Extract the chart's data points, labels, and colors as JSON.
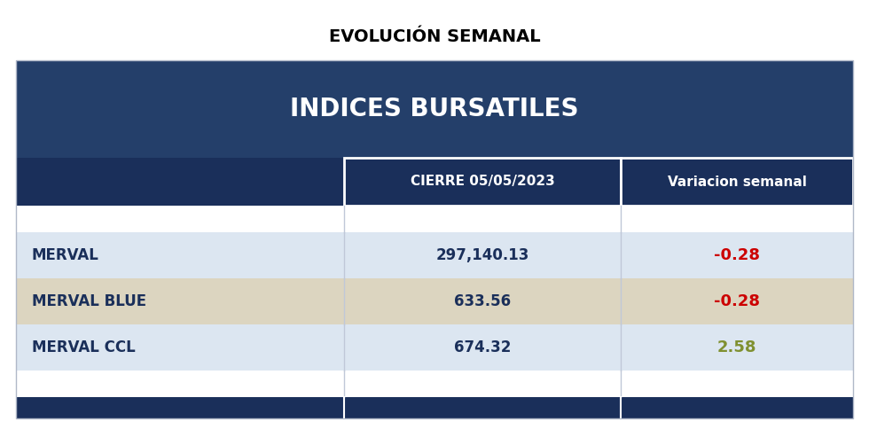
{
  "title": "EVOLUCIÓN SEMANAL",
  "table_header": "INDICES BURSATILES",
  "col1_header": "CIERRE 05/05/2023",
  "col2_header": "Variacion semanal",
  "rows": [
    {
      "name": "MERVAL",
      "value": "297,140.13",
      "change": "-0.28",
      "change_color": "#cc0000",
      "row_bg": "#dce6f1"
    },
    {
      "name": "MERVAL BLUE",
      "value": "633.56",
      "change": "-0.28",
      "change_color": "#cc0000",
      "row_bg": "#dcd5c0"
    },
    {
      "name": "MERVAL CCL",
      "value": "674.32",
      "change": "2.58",
      "change_color": "#7f9030",
      "row_bg": "#dce6f1"
    }
  ],
  "header_bg": "#243f6a",
  "col_header_bg": "#1a2f5a",
  "col_header_text": "#ffffff",
  "table_title_color": "#ffffff",
  "title_color": "#000000",
  "name_color": "#1a2f5a",
  "value_color": "#1a2f5a",
  "footer_bg": "#1a2f5a",
  "border_color": "#ffffff",
  "background_color": "#ffffff",
  "empty_row_bg": "#ffffff",
  "divider_color": "#c0c8d8"
}
